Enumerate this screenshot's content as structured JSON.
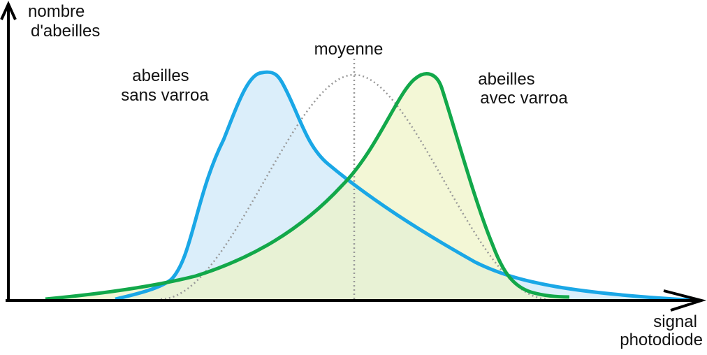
{
  "y_axis": {
    "label_lines": [
      "nombre",
      "d'abeilles"
    ]
  },
  "x_axis": {
    "label_lines": [
      "signal",
      "photodiode"
    ]
  },
  "mean": {
    "label": "moyenne"
  },
  "curves": [
    {
      "label_lines": [
        "abeilles",
        "sans varroa"
      ]
    },
    {
      "label_lines": [
        "abeilles",
        "avec varroa"
      ]
    }
  ]
}
